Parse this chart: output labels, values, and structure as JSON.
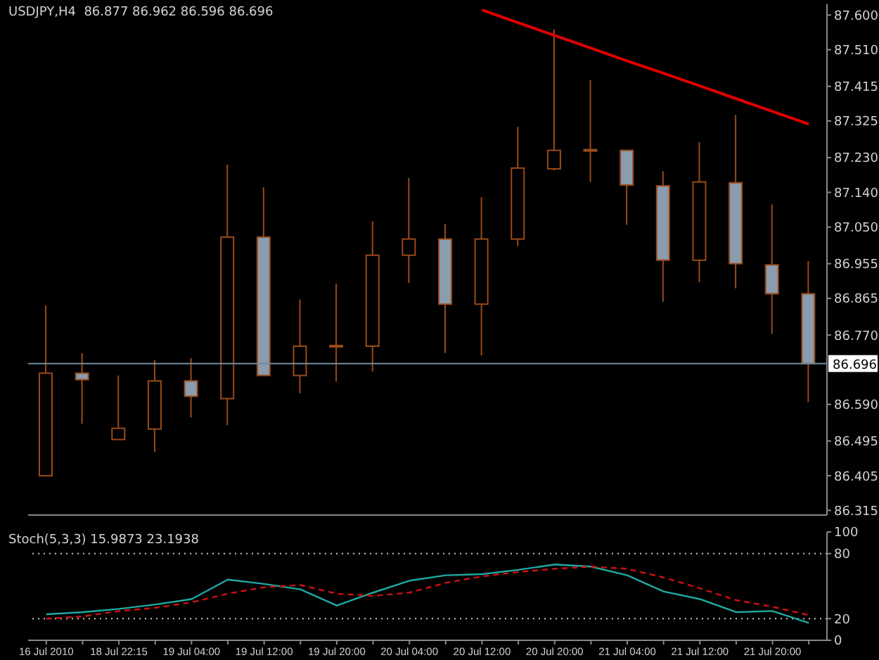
{
  "chart_data": [
    {
      "type": "candlestick",
      "title": "USDJPY,H4  86.877 86.962 86.596 86.696",
      "categories": [
        null,
        null,
        null,
        null,
        null,
        null,
        null,
        null,
        null,
        null,
        null,
        null,
        null,
        null,
        null,
        null,
        null,
        null,
        null,
        null,
        null,
        null
      ],
      "ohlc": [
        [
          86.405,
          86.847,
          86.405,
          86.671
        ],
        [
          86.671,
          86.723,
          86.54,
          86.654
        ],
        [
          86.499,
          86.665,
          86.499,
          86.528
        ],
        [
          86.526,
          86.705,
          86.466,
          86.651
        ],
        [
          86.651,
          86.71,
          86.556,
          86.611
        ],
        [
          86.605,
          87.212,
          86.536,
          87.024
        ],
        [
          87.024,
          87.153,
          86.665,
          86.665
        ],
        [
          86.665,
          86.862,
          86.619,
          86.741
        ],
        [
          86.741,
          86.903,
          86.649,
          86.741
        ],
        [
          86.741,
          87.065,
          86.675,
          86.977
        ],
        [
          86.977,
          87.177,
          86.905,
          87.019
        ],
        [
          87.019,
          87.058,
          86.723,
          86.85
        ],
        [
          86.85,
          87.127,
          86.717,
          87.019
        ],
        [
          87.019,
          87.31,
          87.001,
          87.203
        ],
        [
          87.201,
          87.563,
          87.197,
          87.249
        ],
        [
          87.249,
          87.431,
          87.167,
          87.249
        ],
        [
          87.249,
          87.249,
          87.056,
          87.159
        ],
        [
          87.157,
          87.195,
          86.856,
          86.964
        ],
        [
          86.964,
          87.27,
          86.907,
          87.167
        ],
        [
          87.165,
          87.341,
          86.891,
          86.955
        ],
        [
          86.952,
          87.109,
          86.773,
          86.877
        ],
        [
          86.877,
          86.962,
          86.596,
          86.696
        ]
      ],
      "colors": [
        "#000000",
        "#8a9cae",
        "#000000",
        "#000000",
        "#8a9cae",
        "#000000",
        "#8a9cae",
        "#000000",
        "#000000",
        "#000000",
        "#000000",
        "#8a9cae",
        "#000000",
        "#000000",
        "#000000",
        "#8a9cae",
        "#8a9cae",
        "#8a9cae",
        "#000000",
        "#8a9cae",
        "#8a9cae",
        "#8a9cae"
      ],
      "series": [
        {
          "type": "line",
          "color": "#e00000",
          "values": [
            null,
            null,
            null,
            null,
            null,
            null,
            null,
            null,
            null,
            null,
            null,
            null,
            87.613,
            87.58,
            87.547,
            87.514,
            87.481,
            87.449,
            87.416,
            87.383,
            87.35,
            87.317
          ]
        }
      ],
      "ylim": [
        86.303,
        87.628
      ],
      "yticks": [
        {
          "value": 87.6,
          "label": "87.600"
        },
        {
          "value": 87.51,
          "label": "87.510"
        },
        87.415,
        87.325,
        {
          "value": 87.23,
          "label": "87.230"
        },
        {
          "value": 87.14,
          "label": "87.140"
        },
        {
          "value": 87.05,
          "label": "87.050"
        },
        86.955,
        86.865,
        {
          "value": 86.77,
          "label": "86.770"
        },
        {
          "value": 86.59,
          "label": "86.590"
        },
        86.495,
        86.405,
        86.315
      ],
      "ref_lines": [
        {
          "axis": "y",
          "value": 86.696,
          "label": "86.696",
          "color": "#6f8ca0"
        }
      ],
      "tick_labels": "y",
      "grid": false,
      "legend": false
    },
    {
      "type": "line",
      "title": "Stoch(5,3,3) 15.9873 23.1938",
      "categories": [
        "16 Jul 2010",
        null,
        "18 Jul 22:15",
        null,
        "19 Jul 04:00",
        null,
        "19 Jul 12:00",
        null,
        "19 Jul 20:00",
        null,
        "20 Jul 04:00",
        null,
        "20 Jul 12:00",
        null,
        "20 Jul 20:00",
        null,
        "21 Jul 04:00",
        null,
        "21 Jul 12:00",
        null,
        "21 Jul 20:00",
        null
      ],
      "series": [
        {
          "color": "#20a8a0",
          "line_style": "solid",
          "values": [
            24,
            26,
            29,
            33,
            38,
            56,
            52,
            47,
            32,
            44,
            55,
            60,
            61,
            65,
            70,
            68,
            60,
            45,
            38,
            26,
            27,
            15.9873
          ]
        },
        {
          "color": "#d01010",
          "line_style": "dashed",
          "values": [
            20,
            22,
            27,
            30,
            35,
            43,
            49,
            51,
            43,
            41,
            44,
            53,
            59,
            63,
            66,
            68,
            66,
            58,
            48,
            37,
            31,
            23.1938
          ]
        }
      ],
      "ylim": [
        0,
        100
      ],
      "yticks": [
        0,
        20,
        80,
        100
      ],
      "ref_lines": [
        {
          "axis": "y",
          "value": 80,
          "color": "#c8c8c8",
          "line_style": "dotted"
        },
        {
          "axis": "y",
          "value": 20,
          "color": "#c8c8c8",
          "line_style": "dotted"
        }
      ],
      "grid": false,
      "legend": false
    }
  ]
}
